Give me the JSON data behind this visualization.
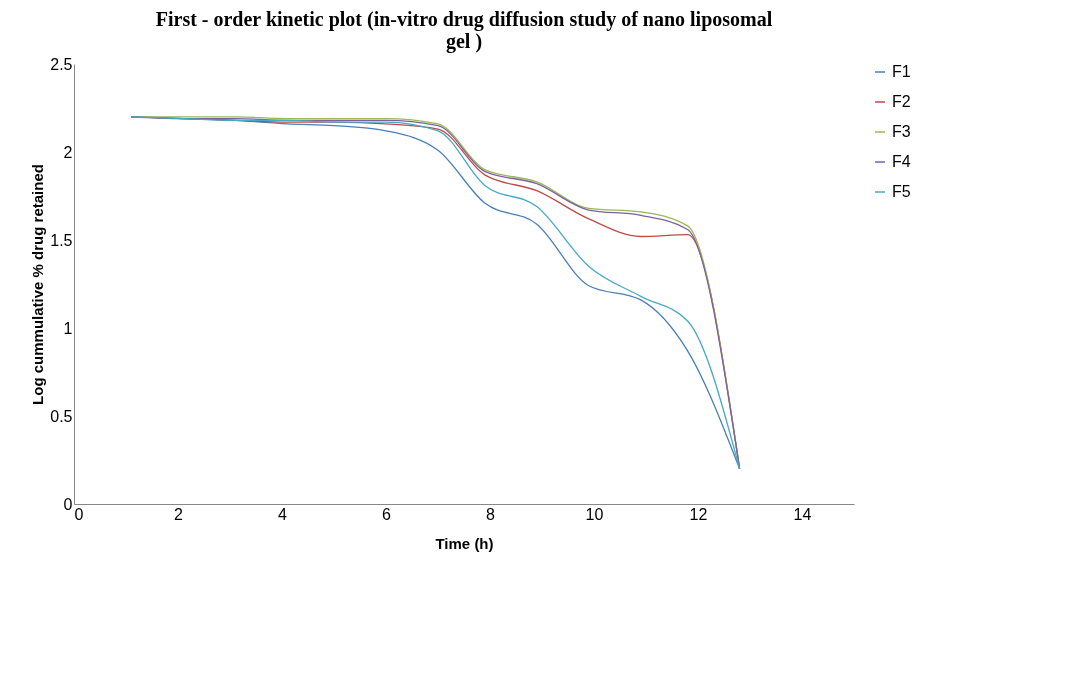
{
  "chart_data": {
    "type": "line",
    "title": "First - order kinetic plot (in-vitro drug diffusion study of nano liposomal gel )",
    "xlabel": "Time (h)",
    "ylabel": "Log cummulative % drug retained",
    "x": [
      1.1,
      2.1,
      3.1,
      4.1,
      5.0,
      6.0,
      7.0,
      7.9,
      8.9,
      9.9,
      10.9,
      11.8,
      12.8
    ],
    "series": [
      {
        "name": "F1",
        "color": "#4a7ebb",
        "values": [
          2.2,
          2.19,
          2.18,
          2.16,
          2.15,
          2.12,
          2.01,
          1.71,
          1.59,
          1.24,
          1.16,
          0.87,
          0.2
        ]
      },
      {
        "name": "F2",
        "color": "#be4b48",
        "values": [
          2.2,
          2.19,
          2.18,
          2.17,
          2.17,
          2.16,
          2.13,
          1.87,
          1.78,
          1.62,
          1.52,
          1.53,
          0.2
        ]
      },
      {
        "name": "F3",
        "color": "#98b954",
        "values": [
          2.2,
          2.2,
          2.2,
          2.19,
          2.19,
          2.19,
          2.16,
          1.9,
          1.83,
          1.68,
          1.66,
          1.58,
          0.2
        ]
      },
      {
        "name": "F4",
        "color": "#7d60a0",
        "values": [
          2.2,
          2.19,
          2.19,
          2.18,
          2.18,
          2.18,
          2.15,
          1.89,
          1.82,
          1.67,
          1.64,
          1.56,
          0.2
        ]
      },
      {
        "name": "F5",
        "color": "#46aac5",
        "values": [
          2.2,
          2.19,
          2.18,
          2.18,
          2.17,
          2.17,
          2.12,
          1.81,
          1.69,
          1.35,
          1.18,
          1.04,
          0.2
        ]
      }
    ],
    "xlim": [
      0,
      15
    ],
    "xticks": [
      0,
      2,
      4,
      6,
      8,
      10,
      12,
      14
    ],
    "ylim": [
      0,
      2.5
    ],
    "yticks": [
      0,
      0.5,
      1,
      1.5,
      2,
      2.5
    ],
    "grid": false,
    "legend": "right",
    "marker": "none",
    "line_style": "solid"
  }
}
